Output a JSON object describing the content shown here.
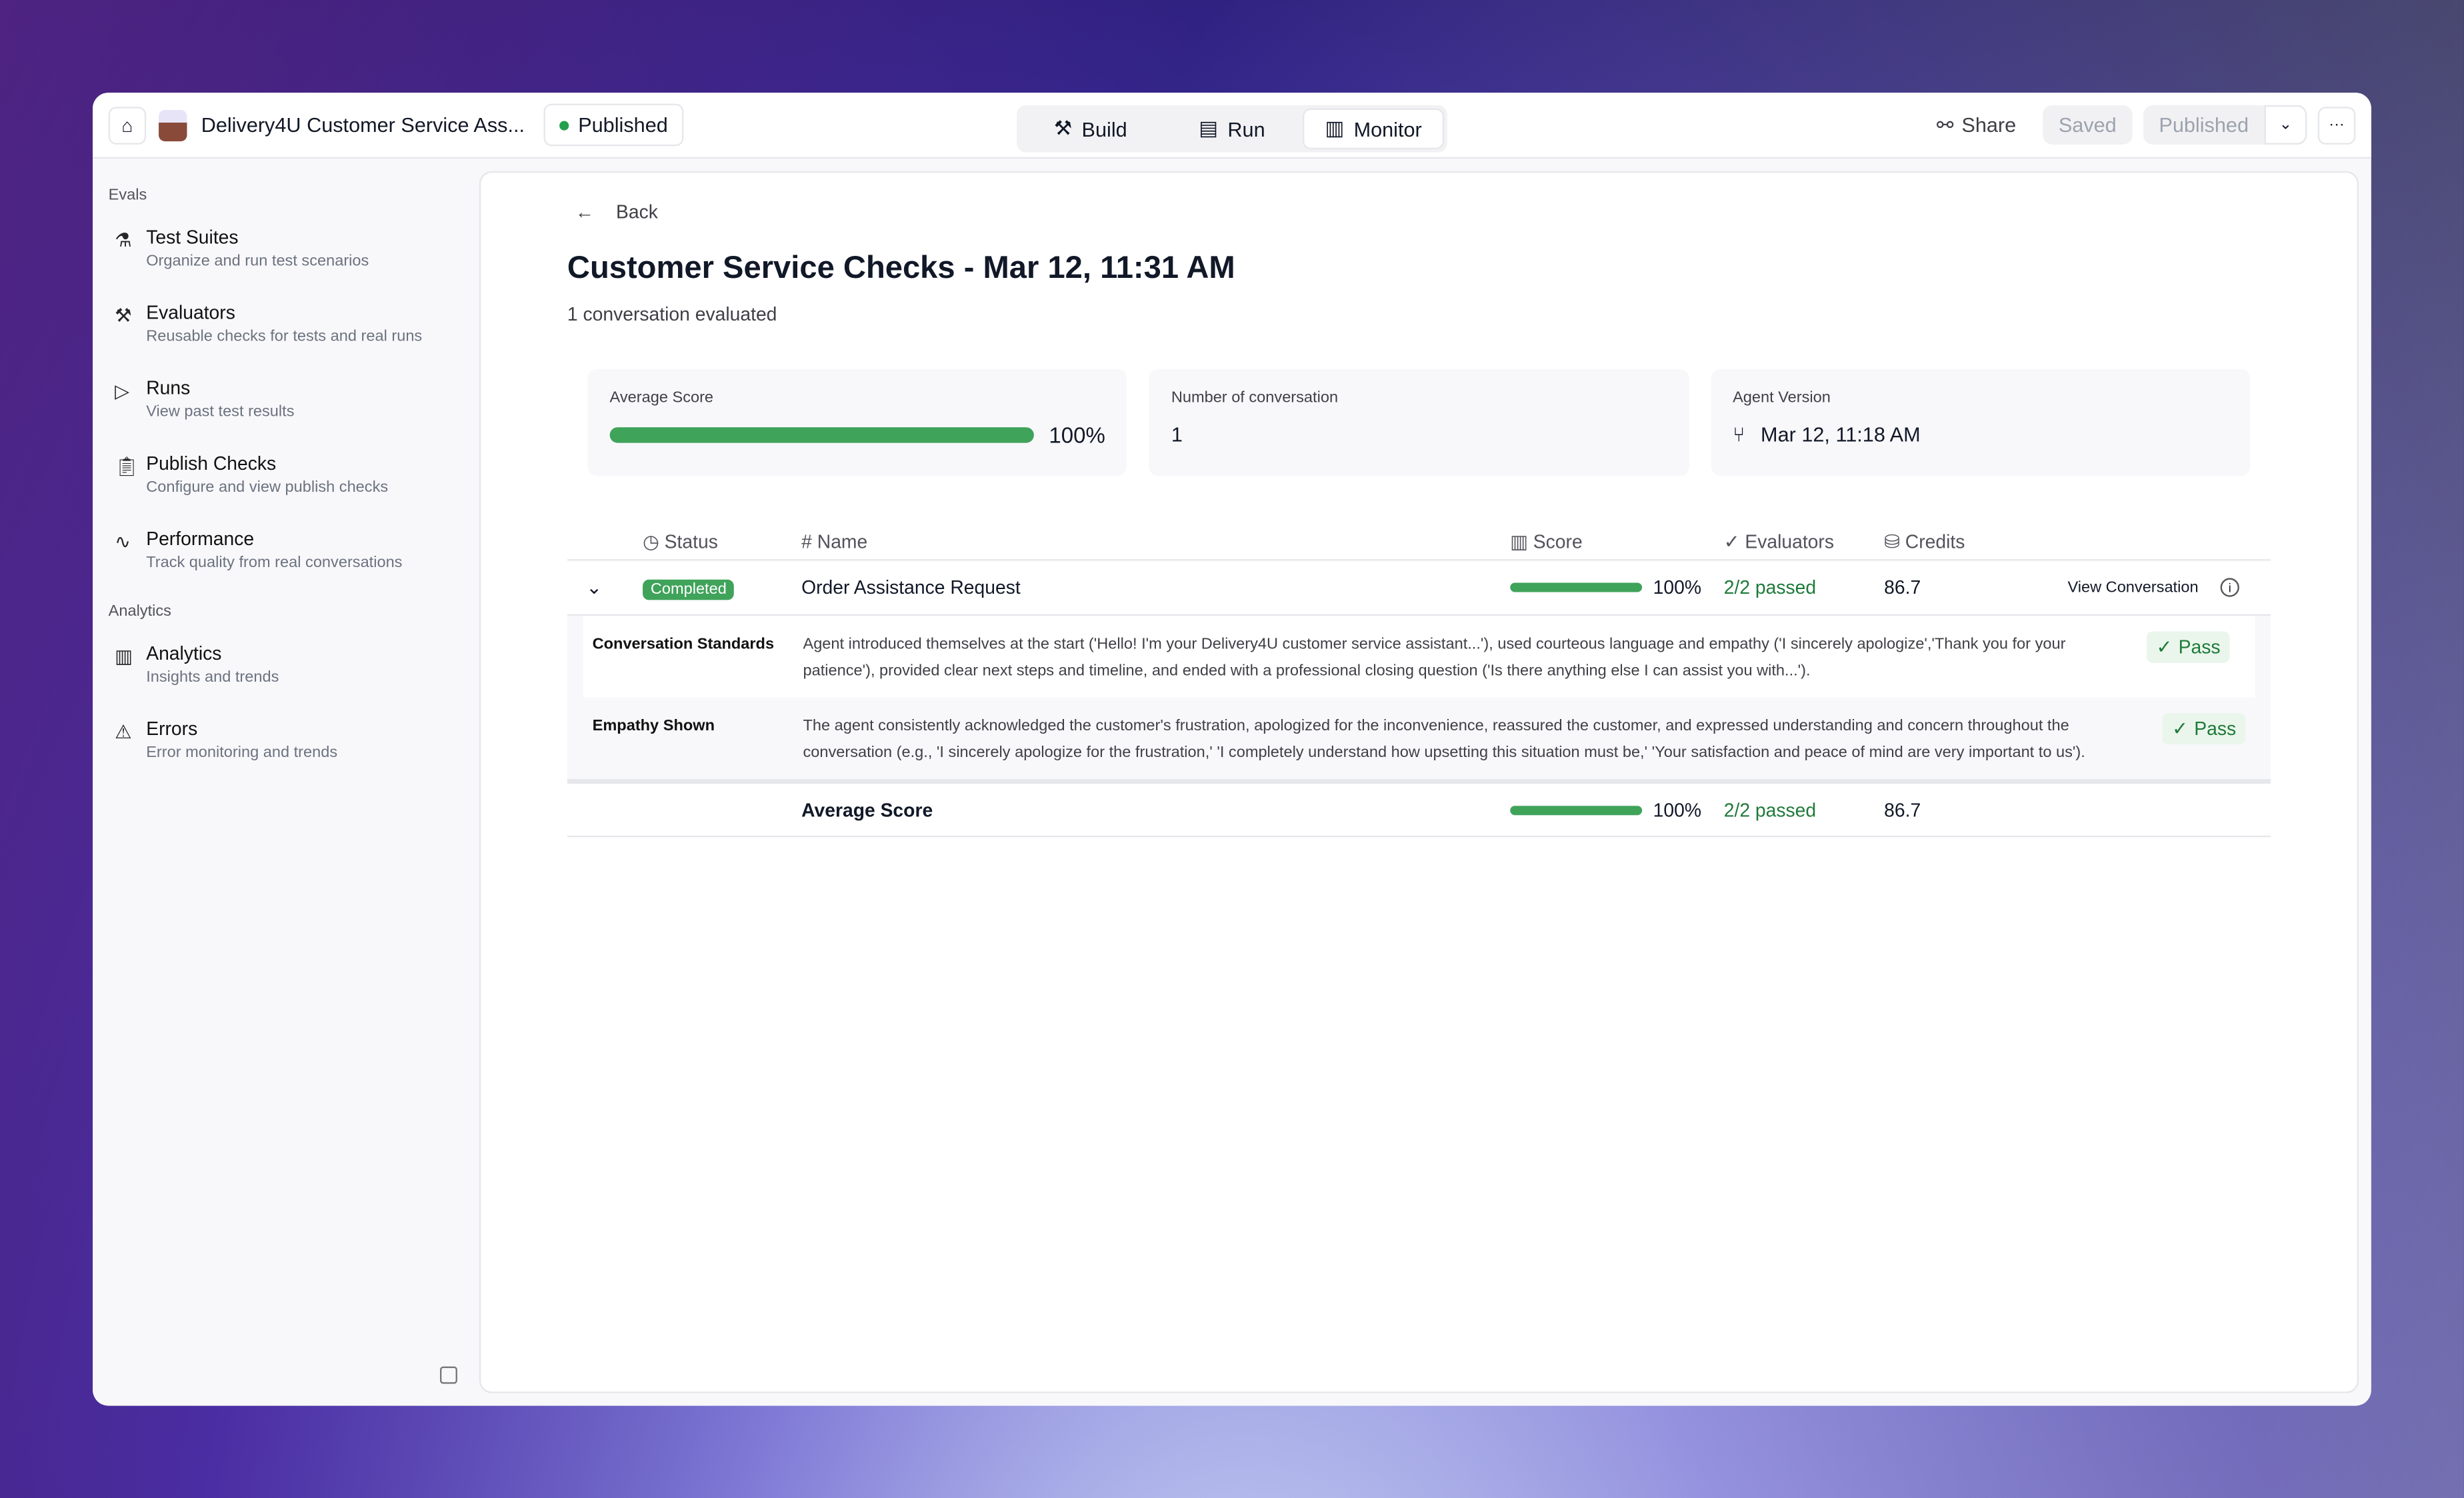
{
  "app": {
    "title": "Delivery4U Customer Service Ass...",
    "status": "Published"
  },
  "tabs": [
    {
      "label": "Build"
    },
    {
      "label": "Run"
    },
    {
      "label": "Monitor"
    }
  ],
  "actions": {
    "share": "Share",
    "saved": "Saved",
    "published": "Published"
  },
  "sidebar": {
    "evals_heading": "Evals",
    "analytics_heading": "Analytics",
    "items": [
      {
        "label": "Test Suites",
        "desc": "Organize and run test scenarios",
        "icon": "flask-icon"
      },
      {
        "label": "Evaluators",
        "desc": "Reusable checks for tests and real runs",
        "icon": "hammer-icon"
      },
      {
        "label": "Runs",
        "desc": "View past test results",
        "icon": "play-icon"
      },
      {
        "label": "Publish Checks",
        "desc": "Configure and view publish checks",
        "icon": "clipboard-icon"
      },
      {
        "label": "Performance",
        "desc": "Track quality from real conversations",
        "icon": "activity-icon"
      },
      {
        "label": "Analytics",
        "desc": "Insights and trends",
        "icon": "bar-chart-icon"
      },
      {
        "label": "Errors",
        "desc": "Error monitoring and trends",
        "icon": "warning-icon"
      }
    ]
  },
  "main": {
    "back": "Back",
    "title": "Customer Service Checks - Mar 12, 11:31 AM",
    "subtitle": "1 conversation evaluated",
    "cards": {
      "avg_label": "Average Score",
      "avg_value": "100%",
      "avg_fraction": 1.0,
      "num_label": "Number of conversation",
      "num_value": "1",
      "ver_label": "Agent Version",
      "ver_value": "Mar 12, 11:18 AM"
    },
    "columns": [
      "Status",
      "Name",
      "Score",
      "Evaluators",
      "Credits"
    ],
    "row": {
      "status": "Completed",
      "name": "Order Assistance Request",
      "score": "100%",
      "score_fraction": 1.0,
      "evaluators": "2/2 passed",
      "credits": "86.7",
      "view": "View Conversation"
    },
    "evaluations": [
      {
        "name": "Conversation Standards",
        "text": "Agent introduced themselves at the start ('Hello! I'm your Delivery4U customer service assistant...'), used courteous language and empathy ('I sincerely apologize','Thank you for your patience'), provided clear next steps and timeline, and ended with a professional closing question ('Is there anything else I can assist you with...').",
        "result": "Pass"
      },
      {
        "name": "Empathy Shown",
        "text": "The agent consistently acknowledged the customer's frustration, apologized for the inconvenience, reassured the customer, and expressed understanding and concern throughout the conversation (e.g., 'I sincerely apologize for the frustration,' 'I completely understand how upsetting this situation must be,' 'Your satisfaction and peace of mind are very important to us').",
        "result": "Pass"
      }
    ],
    "summary": {
      "label": "Average Score",
      "score": "100%",
      "score_fraction": 1.0,
      "evaluators": "2/2 passed",
      "credits": "86.7"
    }
  },
  "colors": {
    "accent_green": "#3fa35a",
    "pass_text": "#1f7a3a"
  }
}
